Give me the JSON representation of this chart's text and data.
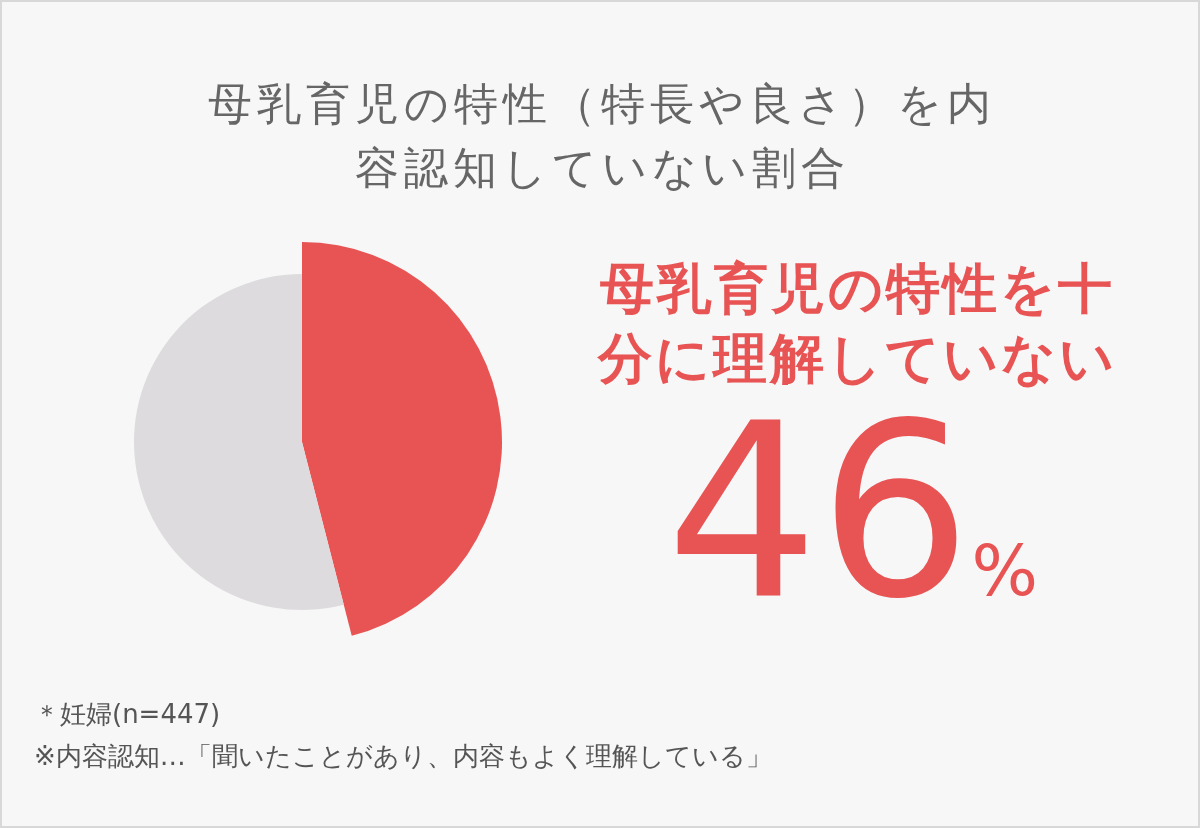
{
  "chart_data": {
    "type": "pie",
    "title": "母乳育児の特性（特長や良さ）を内容認知していない割合",
    "categories": [
      "母乳育児の特性を十分に理解していない",
      null
    ],
    "values": [
      46,
      54
    ],
    "colors": [
      "#e85454",
      "#dddbde"
    ],
    "value_labels": [
      "46%",
      null
    ],
    "annotations": [
      "＊妊婦(n=447)",
      "※内容認知…「聞いたことがあり、内容もよく理解している」"
    ]
  }
}
